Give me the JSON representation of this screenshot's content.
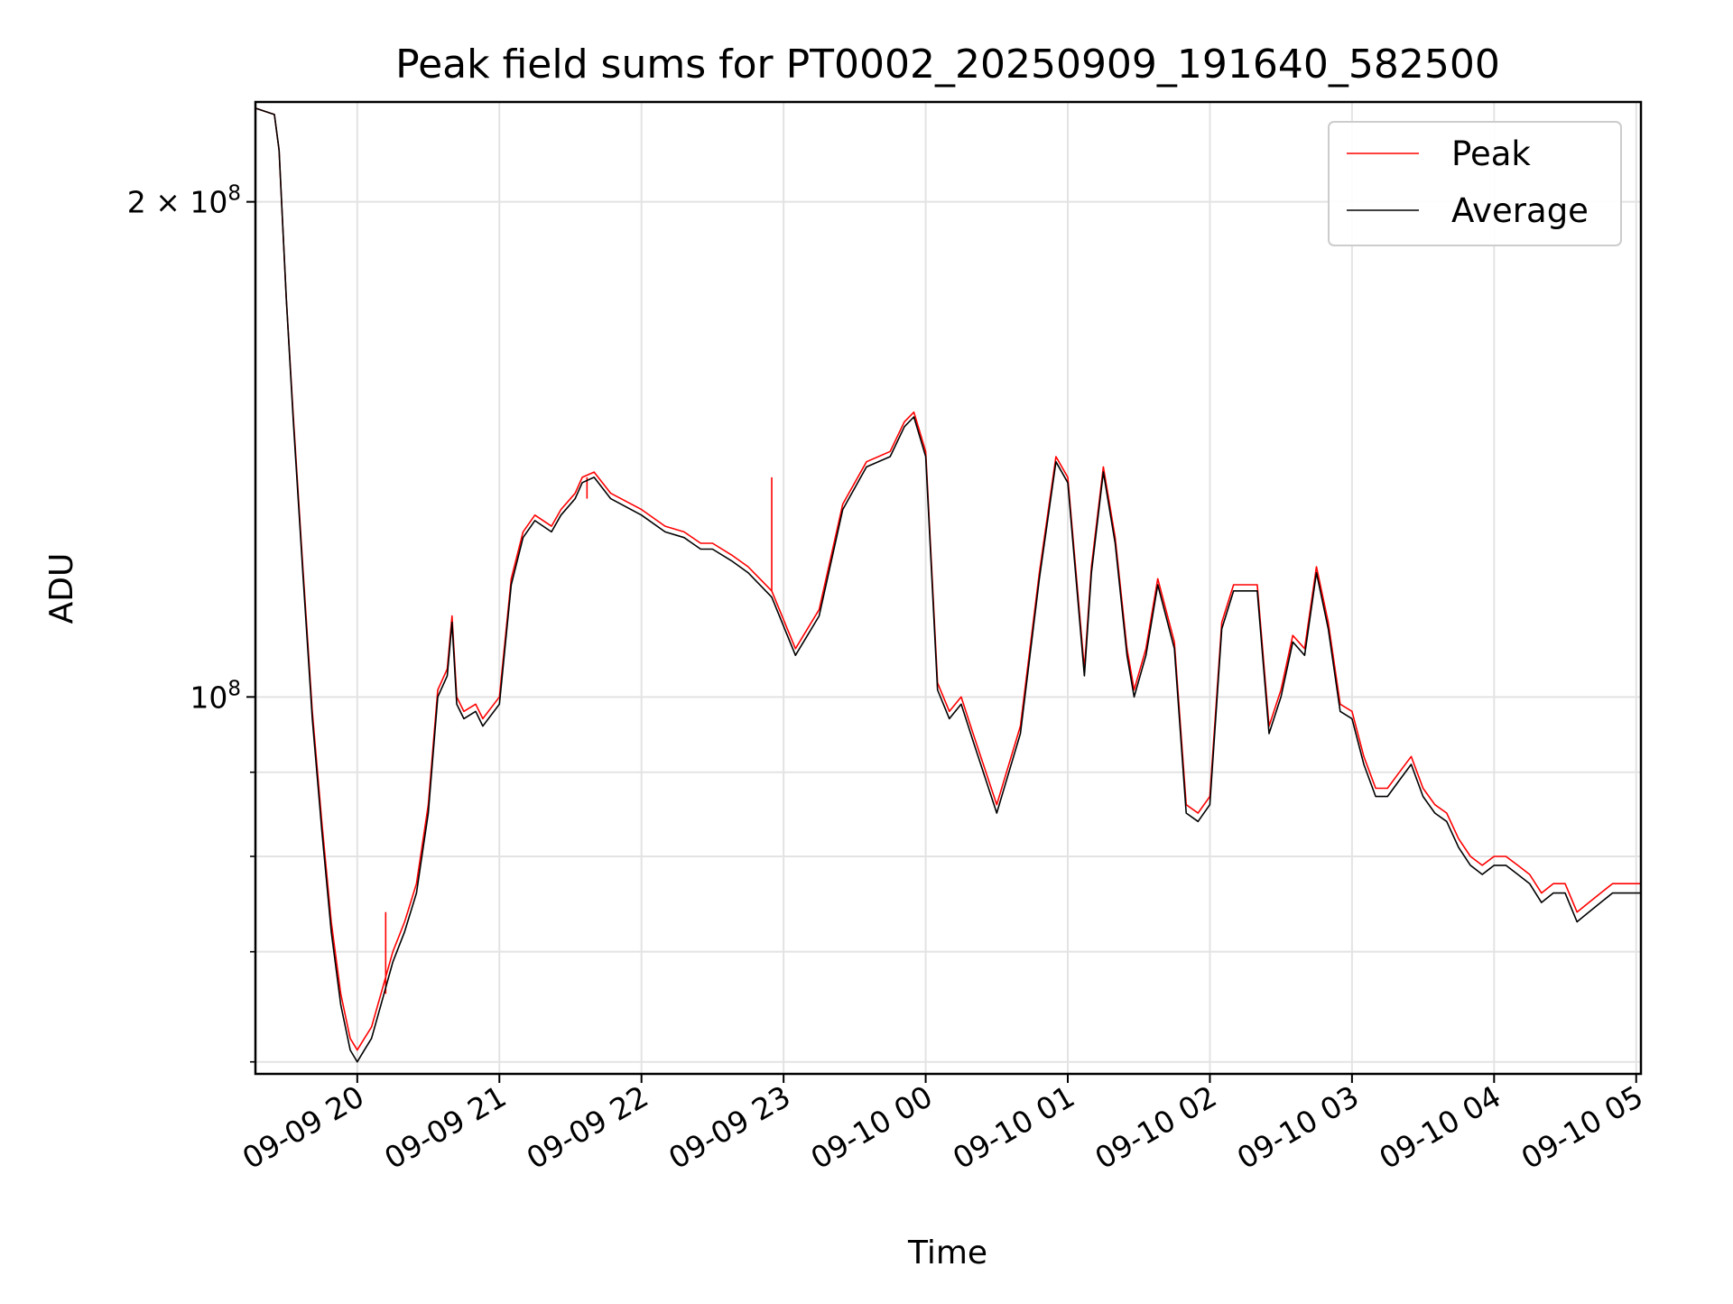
{
  "chart_data": {
    "type": "line",
    "title": "Peak field sums for PT0002_20250909_191640_582500",
    "xlabel": "Time",
    "ylabel": "ADU",
    "y_scale": "log",
    "x_tick_labels": [
      "09-09 20",
      "09-09 21",
      "09-09 22",
      "09-09 23",
      "09-10 00",
      "09-10 01",
      "09-10 02",
      "09-10 03",
      "09-10 04",
      "09-10 05"
    ],
    "y_tick_labels": [
      {
        "value": 200000000,
        "mantissa": "2",
        "exponent": "8"
      },
      {
        "value": 100000000,
        "mantissa": "",
        "exponent": "8"
      }
    ],
    "xlim": [
      "2025-09-09 19:17",
      "2025-09-10 05:02"
    ],
    "ylim": [
      59000000,
      230000000
    ],
    "grid": true,
    "legend_position": "upper right",
    "series": [
      {
        "name": "Peak",
        "color": "#ff0000",
        "x": [
          "2025-09-09 19:17",
          "2025-09-09 19:25",
          "2025-09-09 19:27",
          "2025-09-09 19:30",
          "2025-09-09 19:33",
          "2025-09-09 19:37",
          "2025-09-09 19:41",
          "2025-09-09 19:45",
          "2025-09-09 19:49",
          "2025-09-09 19:53",
          "2025-09-09 19:57",
          "2025-09-09 20:00",
          "2025-09-09 20:03",
          "2025-09-09 20:06",
          "2025-09-09 20:10",
          "2025-09-09 20:15",
          "2025-09-09 20:20",
          "2025-09-09 20:25",
          "2025-09-09 20:30",
          "2025-09-09 20:34",
          "2025-09-09 20:38",
          "2025-09-09 20:40",
          "2025-09-09 20:42",
          "2025-09-09 20:45",
          "2025-09-09 20:50",
          "2025-09-09 20:53",
          "2025-09-09 21:00",
          "2025-09-09 21:05",
          "2025-09-09 21:10",
          "2025-09-09 21:15",
          "2025-09-09 21:22",
          "2025-09-09 21:26",
          "2025-09-09 21:32",
          "2025-09-09 21:35",
          "2025-09-09 21:40",
          "2025-09-09 21:47",
          "2025-09-09 22:00",
          "2025-09-09 22:10",
          "2025-09-09 22:18",
          "2025-09-09 22:25",
          "2025-09-09 22:30",
          "2025-09-09 22:38",
          "2025-09-09 22:45",
          "2025-09-09 22:55",
          "2025-09-09 23:05",
          "2025-09-09 23:15",
          "2025-09-09 23:25",
          "2025-09-09 23:35",
          "2025-09-09 23:45",
          "2025-09-09 23:51",
          "2025-09-09 23:55",
          "2025-09-10 00:00",
          "2025-09-10 00:05",
          "2025-09-10 00:10",
          "2025-09-10 00:15",
          "2025-09-10 00:20",
          "2025-09-10 00:30",
          "2025-09-10 00:40",
          "2025-09-10 00:48",
          "2025-09-10 00:55",
          "2025-09-10 01:00",
          "2025-09-10 01:07",
          "2025-09-10 01:10",
          "2025-09-10 01:15",
          "2025-09-10 01:20",
          "2025-09-10 01:25",
          "2025-09-10 01:28",
          "2025-09-10 01:33",
          "2025-09-10 01:38",
          "2025-09-10 01:45",
          "2025-09-10 01:50",
          "2025-09-10 01:55",
          "2025-09-10 02:00",
          "2025-09-10 02:05",
          "2025-09-10 02:10",
          "2025-09-10 02:15",
          "2025-09-10 02:20",
          "2025-09-10 02:25",
          "2025-09-10 02:30",
          "2025-09-10 02:35",
          "2025-09-10 02:40",
          "2025-09-10 02:45",
          "2025-09-10 02:50",
          "2025-09-10 02:55",
          "2025-09-10 03:00",
          "2025-09-10 03:05",
          "2025-09-10 03:10",
          "2025-09-10 03:15",
          "2025-09-10 03:20",
          "2025-09-10 03:25",
          "2025-09-10 03:30",
          "2025-09-10 03:35",
          "2025-09-10 03:40",
          "2025-09-10 03:45",
          "2025-09-10 03:50",
          "2025-09-10 03:55",
          "2025-09-10 04:00",
          "2025-09-10 04:05",
          "2025-09-10 04:10",
          "2025-09-10 04:15",
          "2025-09-10 04:20",
          "2025-09-10 04:25",
          "2025-09-10 04:30",
          "2025-09-10 04:35",
          "2025-09-10 04:40",
          "2025-09-10 04:45",
          "2025-09-10 04:50",
          "2025-09-10 04:55",
          "2025-09-10 05:00",
          "2025-09-10 05:02"
        ],
        "y": [
          228000000,
          226000000,
          215000000,
          175000000,
          148000000,
          120000000,
          98000000,
          84000000,
          73000000,
          66000000,
          62000000,
          61000000,
          62000000,
          63000000,
          66000000,
          70000000,
          73000000,
          77000000,
          86000000,
          101000000,
          104000000,
          112000000,
          100000000,
          98000000,
          99000000,
          97000000,
          100000000,
          118000000,
          126000000,
          129000000,
          127000000,
          130000000,
          133000000,
          136000000,
          137000000,
          133000000,
          130000000,
          127000000,
          126000000,
          124000000,
          124000000,
          122000000,
          120000000,
          116000000,
          107000000,
          113000000,
          131000000,
          139000000,
          141000000,
          147000000,
          149000000,
          141000000,
          102000000,
          98000000,
          100000000,
          95000000,
          86000000,
          96000000,
          119000000,
          140000000,
          136000000,
          104000000,
          120000000,
          138000000,
          125000000,
          107000000,
          101000000,
          107000000,
          118000000,
          108000000,
          86000000,
          85000000,
          87000000,
          111000000,
          117000000,
          117000000,
          117000000,
          96000000,
          101000000,
          109000000,
          107000000,
          120000000,
          111000000,
          99000000,
          98000000,
          92000000,
          88000000,
          88000000,
          90000000,
          92000000,
          88000000,
          86000000,
          85000000,
          82000000,
          80000000,
          79000000,
          80000000,
          80000000,
          79000000,
          78000000,
          76000000,
          77000000,
          77000000,
          74000000,
          75000000,
          76000000,
          77000000,
          77000000,
          77000000,
          77000000
        ],
        "spikes": [
          {
            "x": "2025-09-09 20:12",
            "y": 74000000
          },
          {
            "x": "2025-09-09 21:37",
            "y": 132000000
          },
          {
            "x": "2025-09-09 22:55",
            "y": 136000000
          }
        ]
      },
      {
        "name": "Average",
        "color": "#000000",
        "x": [
          "2025-09-09 19:17",
          "2025-09-09 19:25",
          "2025-09-09 19:27",
          "2025-09-09 19:30",
          "2025-09-09 19:33",
          "2025-09-09 19:37",
          "2025-09-09 19:41",
          "2025-09-09 19:45",
          "2025-09-09 19:49",
          "2025-09-09 19:53",
          "2025-09-09 19:57",
          "2025-09-09 20:00",
          "2025-09-09 20:03",
          "2025-09-09 20:06",
          "2025-09-09 20:10",
          "2025-09-09 20:15",
          "2025-09-09 20:20",
          "2025-09-09 20:25",
          "2025-09-09 20:30",
          "2025-09-09 20:34",
          "2025-09-09 20:38",
          "2025-09-09 20:40",
          "2025-09-09 20:42",
          "2025-09-09 20:45",
          "2025-09-09 20:50",
          "2025-09-09 20:53",
          "2025-09-09 21:00",
          "2025-09-09 21:05",
          "2025-09-09 21:10",
          "2025-09-09 21:15",
          "2025-09-09 21:22",
          "2025-09-09 21:26",
          "2025-09-09 21:32",
          "2025-09-09 21:35",
          "2025-09-09 21:40",
          "2025-09-09 21:47",
          "2025-09-09 22:00",
          "2025-09-09 22:10",
          "2025-09-09 22:18",
          "2025-09-09 22:25",
          "2025-09-09 22:30",
          "2025-09-09 22:38",
          "2025-09-09 22:45",
          "2025-09-09 22:55",
          "2025-09-09 23:05",
          "2025-09-09 23:15",
          "2025-09-09 23:25",
          "2025-09-09 23:35",
          "2025-09-09 23:45",
          "2025-09-09 23:51",
          "2025-09-09 23:55",
          "2025-09-10 00:00",
          "2025-09-10 00:05",
          "2025-09-10 00:10",
          "2025-09-10 00:15",
          "2025-09-10 00:20",
          "2025-09-10 00:30",
          "2025-09-10 00:40",
          "2025-09-10 00:48",
          "2025-09-10 00:55",
          "2025-09-10 01:00",
          "2025-09-10 01:07",
          "2025-09-10 01:10",
          "2025-09-10 01:15",
          "2025-09-10 01:20",
          "2025-09-10 01:25",
          "2025-09-10 01:28",
          "2025-09-10 01:33",
          "2025-09-10 01:38",
          "2025-09-10 01:45",
          "2025-09-10 01:50",
          "2025-09-10 01:55",
          "2025-09-10 02:00",
          "2025-09-10 02:05",
          "2025-09-10 02:10",
          "2025-09-10 02:15",
          "2025-09-10 02:20",
          "2025-09-10 02:25",
          "2025-09-10 02:30",
          "2025-09-10 02:35",
          "2025-09-10 02:40",
          "2025-09-10 02:45",
          "2025-09-10 02:50",
          "2025-09-10 02:55",
          "2025-09-10 03:00",
          "2025-09-10 03:05",
          "2025-09-10 03:10",
          "2025-09-10 03:15",
          "2025-09-10 03:20",
          "2025-09-10 03:25",
          "2025-09-10 03:30",
          "2025-09-10 03:35",
          "2025-09-10 03:40",
          "2025-09-10 03:45",
          "2025-09-10 03:50",
          "2025-09-10 03:55",
          "2025-09-10 04:00",
          "2025-09-10 04:05",
          "2025-09-10 04:10",
          "2025-09-10 04:15",
          "2025-09-10 04:20",
          "2025-09-10 04:25",
          "2025-09-10 04:30",
          "2025-09-10 04:35",
          "2025-09-10 04:40",
          "2025-09-10 04:45",
          "2025-09-10 04:50",
          "2025-09-10 04:55",
          "2025-09-10 05:00",
          "2025-09-10 05:02"
        ],
        "y": [
          228000000,
          226000000,
          215000000,
          175000000,
          147000000,
          119000000,
          97000000,
          83000000,
          72000000,
          65000000,
          61000000,
          60000000,
          61000000,
          62000000,
          65000000,
          69000000,
          72000000,
          76000000,
          85000000,
          100000000,
          103000000,
          111000000,
          99000000,
          97000000,
          98000000,
          96000000,
          99000000,
          117000000,
          125000000,
          128000000,
          126000000,
          129000000,
          132000000,
          135000000,
          136000000,
          132000000,
          129000000,
          126000000,
          125000000,
          123000000,
          123000000,
          121000000,
          119000000,
          115000000,
          106000000,
          112000000,
          130000000,
          138000000,
          140000000,
          146000000,
          148000000,
          140000000,
          101000000,
          97000000,
          99000000,
          94000000,
          85000000,
          95000000,
          118000000,
          139000000,
          135000000,
          103000000,
          119000000,
          137000000,
          124000000,
          106000000,
          100000000,
          106000000,
          117000000,
          107000000,
          85000000,
          84000000,
          86000000,
          110000000,
          116000000,
          116000000,
          116000000,
          95000000,
          100000000,
          108000000,
          106000000,
          119000000,
          110000000,
          98000000,
          97000000,
          91000000,
          87000000,
          87000000,
          89000000,
          91000000,
          87000000,
          85000000,
          84000000,
          81000000,
          79000000,
          78000000,
          79000000,
          79000000,
          78000000,
          77000000,
          75000000,
          76000000,
          76000000,
          73000000,
          74000000,
          75000000,
          76000000,
          76000000,
          76000000,
          76000000
        ]
      }
    ]
  }
}
